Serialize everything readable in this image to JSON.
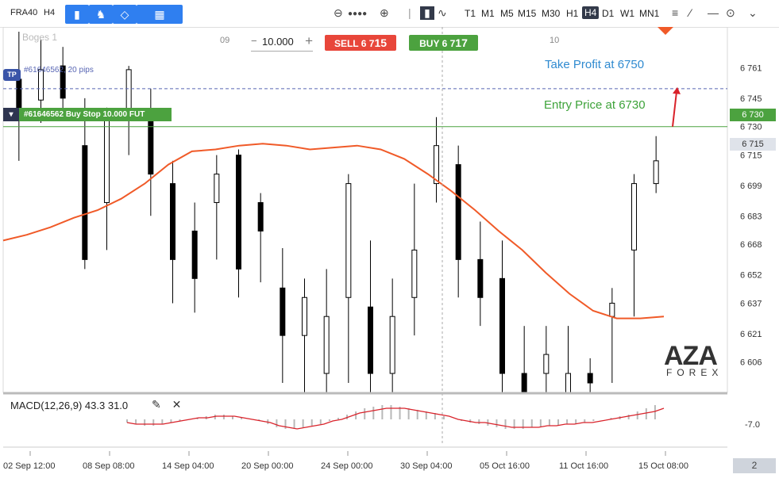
{
  "toolbar": {
    "symbol": "FRA40",
    "timeframe": "H4",
    "timeframes": [
      "T1",
      "M1",
      "M5",
      "M15",
      "M30",
      "H1",
      "H4",
      "D1",
      "W1",
      "MN1"
    ],
    "active_timeframe": "H4"
  },
  "order_panel": {
    "quantity": "10.000",
    "sell_label": "SELL",
    "sell_price_main": "6 7",
    "sell_price_big": "15",
    "buy_label": "BUY",
    "buy_price_main": "6 7",
    "buy_price_big": "17"
  },
  "chart_top_labels": {
    "left_time": "09",
    "right_time": "10",
    "faded_left": "Boges 1"
  },
  "tp_line": {
    "badge": "TP",
    "text": "#61646562, 20 pips"
  },
  "entry_line": {
    "text": "#61646562 Buy Stop 10.000 FUT"
  },
  "annotations": {
    "take_profit": "Take Profit at 6750",
    "entry": "Entry Price at 6730"
  },
  "price_tags": {
    "entry": "6 730",
    "current": "6 715"
  },
  "logo": {
    "big": "AZA",
    "small": "FOREX"
  },
  "macd": {
    "label": "MACD(12,26,9) 43.3 31.0"
  },
  "pager": {
    "value": "2"
  },
  "colors": {
    "bull": "#ffffff",
    "bear": "#000000",
    "ma": "#f05a28",
    "macd_signal": "#d9222a",
    "tp_line": "#5866b4",
    "entry_line": "#4ca23f"
  },
  "chart_data": {
    "type": "candlestick",
    "y_axis_ticks": [
      "6 761",
      "6 745",
      "6 730",
      "6 715",
      "6 699",
      "6 683",
      "6 668",
      "6 652",
      "6 637",
      "6 621",
      "6 606"
    ],
    "y_axis_values": [
      6761,
      6745,
      6730,
      6715,
      6699,
      6683,
      6668,
      6652,
      6637,
      6621,
      6606
    ],
    "x_axis_ticks": [
      "02 Sep 12:00",
      "08 Sep 08:00",
      "14 Sep 04:00",
      "20 Sep 00:00",
      "24 Sep 00:00",
      "30 Sep 04:00",
      "05 Oct 16:00",
      "11 Oct 16:00",
      "15 Oct 08:00"
    ],
    "macd_axis_ticks": [
      "-7.0"
    ],
    "levels": {
      "take_profit": 6750,
      "entry": 6730,
      "current": 6715
    },
    "moving_average": [
      6670,
      6673,
      6677,
      6682,
      6686,
      6692,
      6700,
      6710,
      6717,
      6718,
      6720,
      6721,
      6720,
      6718,
      6719,
      6720,
      6718,
      6713,
      6705,
      6696,
      6686,
      6675,
      6665,
      6653,
      6642,
      6633,
      6629,
      6629,
      6630
    ],
    "candles": [
      {
        "o": 6755,
        "c": 6735,
        "h": 6780,
        "l": 6712
      },
      {
        "o": 6744,
        "c": 6760,
        "h": 6776,
        "l": 6732
      },
      {
        "o": 6762,
        "c": 6745,
        "h": 6772,
        "l": 6735
      },
      {
        "o": 6720,
        "c": 6660,
        "h": 6745,
        "l": 6655
      },
      {
        "o": 6690,
        "c": 6735,
        "h": 6740,
        "l": 6665
      },
      {
        "o": 6735,
        "c": 6760,
        "h": 6762,
        "l": 6715
      },
      {
        "o": 6735,
        "c": 6705,
        "h": 6750,
        "l": 6683
      },
      {
        "o": 6700,
        "c": 6660,
        "h": 6712,
        "l": 6637
      },
      {
        "o": 6675,
        "c": 6650,
        "h": 6690,
        "l": 6632
      },
      {
        "o": 6690,
        "c": 6705,
        "h": 6715,
        "l": 6660
      },
      {
        "o": 6715,
        "c": 6655,
        "h": 6718,
        "l": 6640
      },
      {
        "o": 6690,
        "c": 6675,
        "h": 6695,
        "l": 6648
      },
      {
        "o": 6645,
        "c": 6620,
        "h": 6666,
        "l": 6595
      },
      {
        "o": 6620,
        "c": 6640,
        "h": 6650,
        "l": 6590
      },
      {
        "o": 6600,
        "c": 6630,
        "h": 6655,
        "l": 6590
      },
      {
        "o": 6640,
        "c": 6700,
        "h": 6705,
        "l": 6595
      },
      {
        "o": 6635,
        "c": 6600,
        "h": 6670,
        "l": 6590
      },
      {
        "o": 6600,
        "c": 6630,
        "h": 6650,
        "l": 6590
      },
      {
        "o": 6640,
        "c": 6665,
        "h": 6700,
        "l": 6620
      },
      {
        "o": 6700,
        "c": 6720,
        "h": 6735,
        "l": 6690
      },
      {
        "o": 6710,
        "c": 6660,
        "h": 6720,
        "l": 6640
      },
      {
        "o": 6660,
        "c": 6640,
        "h": 6680,
        "l": 6625
      },
      {
        "o": 6650,
        "c": 6600,
        "h": 6670,
        "l": 6590
      },
      {
        "o": 6600,
        "c": 6590,
        "h": 6625,
        "l": 6585
      },
      {
        "o": 6600,
        "c": 6610,
        "h": 6625,
        "l": 6590
      },
      {
        "o": 6590,
        "c": 6600,
        "h": 6625,
        "l": 6585
      },
      {
        "o": 6600,
        "c": 6595,
        "h": 6608,
        "l": 6585
      },
      {
        "o": 6630,
        "c": 6637,
        "h": 6645,
        "l": 6595
      },
      {
        "o": 6665,
        "c": 6700,
        "h": 6705,
        "l": 6630
      },
      {
        "o": 6700,
        "c": 6712,
        "h": 6725,
        "l": 6695
      }
    ],
    "macd_histogram": [
      -2,
      -3,
      -4,
      -4,
      -3,
      -2,
      -1,
      0,
      1,
      2,
      3,
      3,
      2,
      1,
      0,
      -1,
      -3,
      -5,
      -6,
      -6,
      -5,
      -4,
      -3,
      -1,
      1,
      3,
      5,
      7,
      8,
      9,
      9,
      8,
      7,
      6,
      5,
      4,
      2,
      0,
      -1,
      -2,
      -3,
      -4,
      -5,
      -6,
      -6,
      -6,
      -5,
      -5,
      -4,
      -4,
      -3,
      -3,
      -2,
      -1,
      0,
      1,
      2,
      3,
      5,
      7,
      9
    ],
    "macd_signal": [
      -2,
      -3,
      -3,
      -3,
      -3,
      -2,
      -1,
      0,
      1,
      1,
      2,
      2,
      2,
      1,
      0,
      -1,
      -2,
      -4,
      -5,
      -6,
      -5,
      -4,
      -3,
      -1,
      0,
      2,
      4,
      5,
      6,
      7,
      7,
      7,
      6,
      5,
      4,
      3,
      2,
      0,
      -1,
      -2,
      -2,
      -3,
      -4,
      -5,
      -5,
      -5,
      -5,
      -4,
      -4,
      -3,
      -3,
      -2,
      -2,
      -1,
      0,
      1,
      2,
      3,
      4,
      5,
      7
    ]
  }
}
